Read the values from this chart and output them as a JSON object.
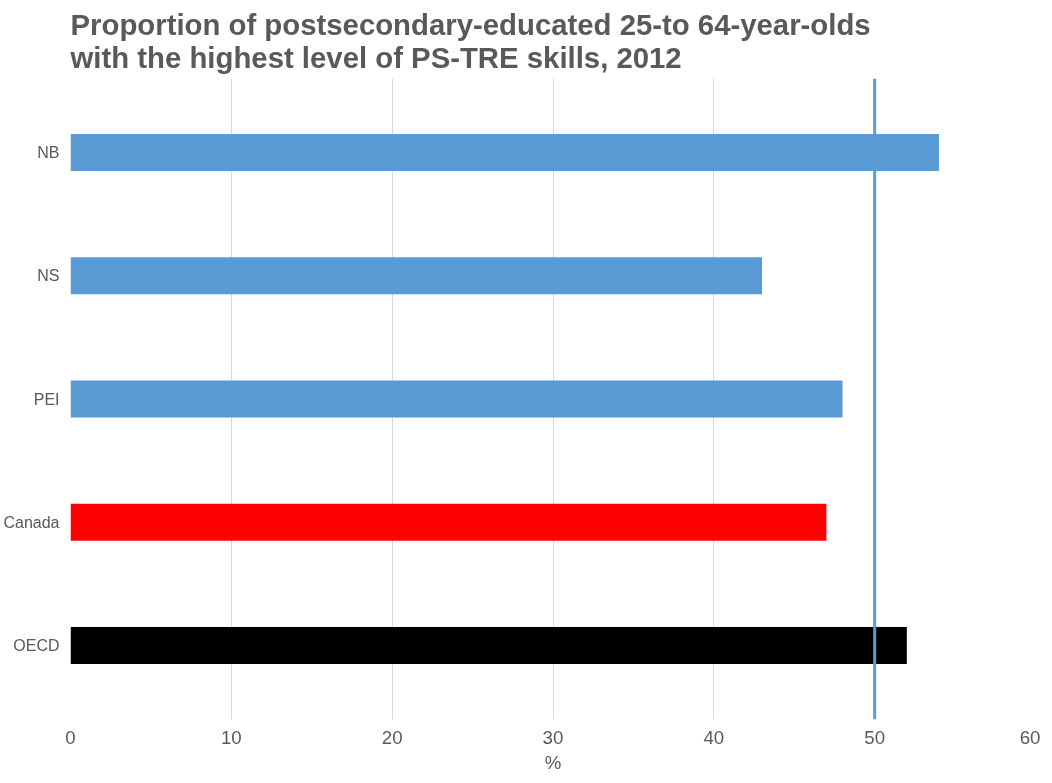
{
  "chart_data": {
    "type": "bar",
    "orientation": "horizontal",
    "title": "Proportion of postsecondary-educated 25-to 64-year-olds\nwith the highest level of PS-TRE skills, 2012",
    "xlabel": "%",
    "categories": [
      "NB",
      "NS",
      "PEI",
      "Canada",
      "OECD"
    ],
    "values": [
      54,
      43,
      48,
      47,
      52
    ],
    "colors": [
      "#5b9bd5",
      "#5b9bd5",
      "#5b9bd5",
      "#ff0000",
      "#000000"
    ],
    "xlim": [
      0,
      60
    ],
    "xticks": [
      0,
      10,
      20,
      30,
      40,
      50,
      60
    ],
    "grid": "x",
    "ref_lines": [
      {
        "axis": "x",
        "value": 50,
        "color": "#5b9bd5"
      }
    ]
  }
}
